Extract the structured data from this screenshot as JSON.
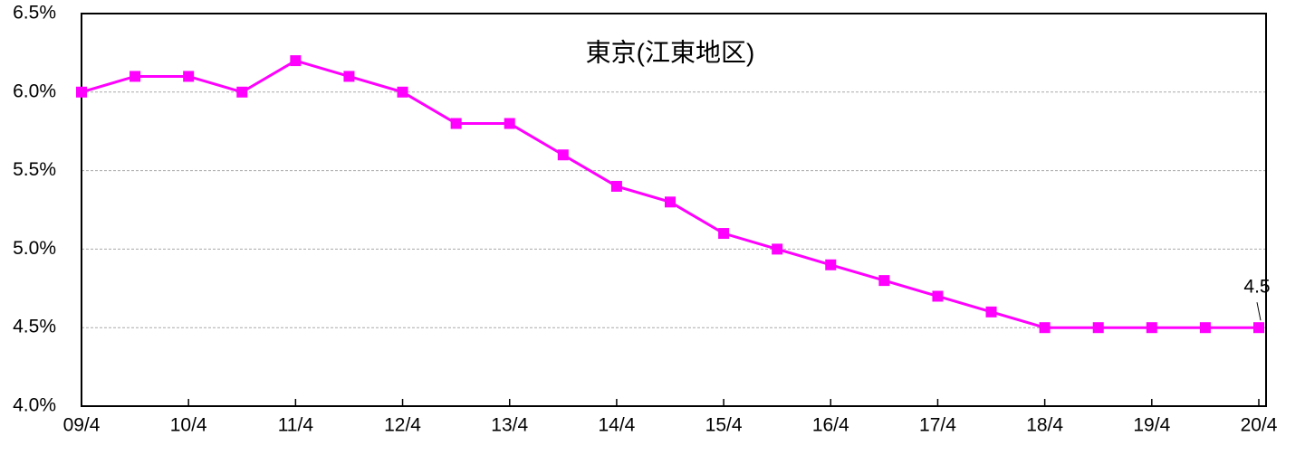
{
  "chart_data": {
    "type": "line",
    "title": "東京(江東地区)",
    "categories": [
      "09/4",
      null,
      "10/4",
      null,
      "11/4",
      null,
      "12/4",
      null,
      "13/4",
      null,
      "14/4",
      null,
      "15/4",
      null,
      "16/4",
      null,
      "17/4",
      null,
      "18/4",
      null,
      "19/4",
      null,
      "20/4"
    ],
    "series": [
      {
        "name": "東京(江東地区)",
        "color": "#ff00ff",
        "values": [
          6.0,
          6.1,
          6.1,
          6.0,
          6.2,
          6.1,
          6.0,
          5.8,
          5.8,
          5.6,
          5.4,
          5.3,
          5.1,
          5.0,
          4.9,
          4.8,
          4.7,
          4.6,
          4.5,
          4.5,
          4.5,
          4.5,
          4.5
        ],
        "value_labels": [
          null,
          null,
          null,
          null,
          null,
          null,
          null,
          null,
          null,
          null,
          null,
          null,
          null,
          null,
          null,
          null,
          null,
          null,
          null,
          null,
          null,
          null,
          "4.5"
        ]
      }
    ],
    "ylim": [
      4.0,
      6.5
    ],
    "yticks": [
      {
        "value": 4.0,
        "label": "4.0%"
      },
      {
        "value": 4.5,
        "label": "4.5%"
      },
      {
        "value": 5.0,
        "label": "5.0%"
      },
      {
        "value": 5.5,
        "label": "5.5%"
      },
      {
        "value": 6.0,
        "label": "6.0%"
      },
      {
        "value": 6.5,
        "label": "6.5%"
      }
    ],
    "grid": true
  }
}
